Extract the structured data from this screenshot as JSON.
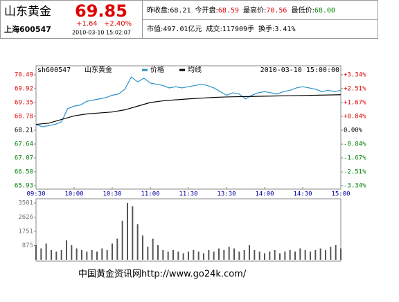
{
  "header": {
    "name": "山东黄金",
    "price": "69.85",
    "change": "+1.64",
    "change_pct": "+2.40%",
    "code": "上海600547",
    "time": "2010-03-10 15:02:07",
    "row1": [
      {
        "label": "昨收盘:",
        "value": "68.21",
        "color": "#000000"
      },
      {
        "label": "今开盘:",
        "value": "68.59",
        "color": "#e00000"
      },
      {
        "label": "最高价:",
        "value": "70.56",
        "color": "#e00000"
      },
      {
        "label": "最低价:",
        "value": "68.00",
        "color": "#008000"
      }
    ],
    "row2": [
      {
        "label": "市值:",
        "value": "497.01亿元"
      },
      {
        "label": "成交:",
        "value": "117909手"
      },
      {
        "label": "换手:",
        "value": "3.41%"
      }
    ],
    "up_color": "#e00000",
    "down_color": "#008000"
  },
  "chart_data": [
    {
      "type": "line",
      "code": "sh600547",
      "name": "山东黄金",
      "timestamp": "2010-03-10 15:00:00",
      "xlim": [
        0,
        240
      ],
      "xticks": [
        {
          "value": 0,
          "label": "09:30"
        },
        {
          "value": 30,
          "label": "10:00"
        },
        {
          "value": 60,
          "label": "10:30"
        },
        {
          "value": 90,
          "label": "11:00"
        },
        {
          "value": 120,
          "label": "11:30"
        },
        {
          "value": 150,
          "label": "13:30"
        },
        {
          "value": 180,
          "label": "14:00"
        },
        {
          "value": 210,
          "label": "14:30"
        },
        {
          "value": 240,
          "label": "15:00"
        }
      ],
      "ylim": [
        65.93,
        70.49
      ],
      "yticks": [
        70.49,
        69.92,
        69.35,
        68.78,
        68.21,
        67.64,
        67.07,
        {
          "value": 66.5,
          "label": "66.50"
        },
        65.93
      ],
      "y2lim": [
        -3.34,
        3.34
      ],
      "y2ticks": [
        {
          "value": 3.34,
          "label": "+3.34%"
        },
        {
          "value": 2.51,
          "label": "+2.51%"
        },
        {
          "value": 1.67,
          "label": "+1.67%"
        },
        {
          "value": 0.84,
          "label": "+0.84%"
        },
        {
          "value": 0,
          "label": "0.00%"
        },
        {
          "value": -0.84,
          "label": "-0.84%"
        },
        {
          "value": -1.67,
          "label": "-1.67%"
        },
        {
          "value": -2.51,
          "label": "-2.51%"
        },
        {
          "value": -3.34,
          "label": "-3.34%"
        }
      ],
      "grid": false,
      "series": [
        {
          "name": "价格",
          "color": "#2a8fc8",
          "x": [
            0,
            5,
            10,
            15,
            20,
            25,
            30,
            35,
            40,
            45,
            50,
            55,
            60,
            65,
            70,
            75,
            80,
            85,
            90,
            95,
            100,
            105,
            110,
            115,
            120,
            125,
            130,
            135,
            140,
            145,
            150,
            155,
            160,
            165,
            170,
            175,
            180,
            185,
            190,
            195,
            200,
            205,
            210,
            215,
            220,
            225,
            230,
            235,
            240
          ],
          "values": [
            68.45,
            68.35,
            68.4,
            68.45,
            68.55,
            69.1,
            69.2,
            69.25,
            69.4,
            69.45,
            69.5,
            69.55,
            69.65,
            69.7,
            69.9,
            70.4,
            70.2,
            70.35,
            70.15,
            70.1,
            70.05,
            69.95,
            70.0,
            69.95,
            70.0,
            70.05,
            70.1,
            70.05,
            69.95,
            69.8,
            69.65,
            69.75,
            69.7,
            69.5,
            69.65,
            69.75,
            69.8,
            69.75,
            69.7,
            69.8,
            69.85,
            69.95,
            70.0,
            69.95,
            69.9,
            69.8,
            69.85,
            69.8,
            69.85
          ]
        },
        {
          "name": "均线",
          "color": "#000000",
          "x": [
            0,
            10,
            20,
            30,
            40,
            50,
            60,
            70,
            80,
            90,
            100,
            110,
            120,
            130,
            140,
            150,
            160,
            170,
            180,
            190,
            200,
            210,
            220,
            230,
            240
          ],
          "values": [
            68.45,
            68.5,
            68.65,
            68.8,
            68.88,
            68.92,
            68.96,
            69.05,
            69.2,
            69.35,
            69.42,
            69.46,
            69.5,
            69.53,
            69.56,
            69.58,
            69.59,
            69.6,
            69.61,
            69.62,
            69.63,
            69.64,
            69.65,
            69.66,
            69.67
          ]
        }
      ]
    },
    {
      "type": "bar",
      "xlim": [
        0,
        240
      ],
      "ylim": [
        0,
        3501
      ],
      "yticks": [
        3501,
        2626,
        1751,
        875
      ],
      "color": "#555555",
      "x": [
        0,
        4,
        8,
        12,
        16,
        20,
        24,
        28,
        32,
        36,
        40,
        44,
        48,
        52,
        56,
        60,
        64,
        68,
        72,
        76,
        80,
        84,
        88,
        92,
        96,
        100,
        104,
        108,
        112,
        116,
        120,
        124,
        128,
        132,
        136,
        140,
        144,
        148,
        152,
        156,
        160,
        164,
        168,
        172,
        176,
        180,
        184,
        188,
        192,
        196,
        200,
        204,
        208,
        212,
        216,
        220,
        224,
        228,
        232,
        236,
        240
      ],
      "values": [
        900,
        700,
        1000,
        600,
        500,
        600,
        1200,
        900,
        700,
        600,
        500,
        600,
        500,
        700,
        600,
        1000,
        1300,
        2400,
        3501,
        3300,
        2200,
        1500,
        800,
        1300,
        900,
        600,
        500,
        600,
        500,
        400,
        500,
        600,
        500,
        400,
        600,
        500,
        700,
        600,
        800,
        700,
        500,
        600,
        900,
        600,
        500,
        400,
        500,
        600,
        400,
        500,
        600,
        500,
        700,
        600,
        500,
        600,
        700,
        600,
        800,
        900,
        700
      ]
    }
  ],
  "footer": "中国黄金资讯网http://www.go24k.com/"
}
